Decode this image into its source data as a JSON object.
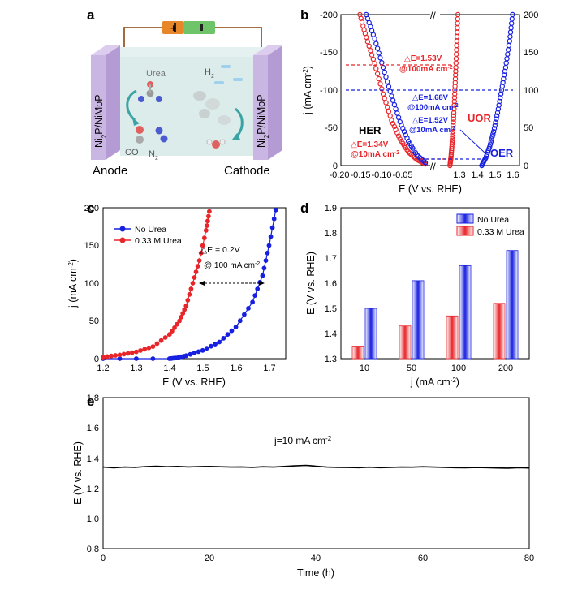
{
  "colors": {
    "red": "#e8262a",
    "blue": "#1720e0",
    "black": "#000000",
    "sketchcell": "#bcd8d8",
    "electrode": "#c9b6e3"
  },
  "panels": {
    "a": {
      "label": "a",
      "anode": "Anode",
      "cathode": "Cathode",
      "electrode": "Ni",
      "electrode_sub": "2",
      "electrode_rest": "P/NiMoP",
      "urea": "Urea",
      "co": "CO",
      "n2": "N",
      "n2_sub": "2",
      "h2": "H",
      "h2_sub": "2",
      "battery_plus": "+"
    },
    "b": {
      "label": "b",
      "xlabel": "E (V vs. RHE)",
      "ylabel": "j (mA cm",
      "ylabel_sup": "-2",
      "ylabel_end": ")",
      "her": "HER",
      "uor": "UOR",
      "oer": "OER",
      "ann": [
        "△E=1.53V",
        "@100mA cm",
        "△E=1.68V",
        "@100mA cm",
        "△E=1.52V",
        "@10mA cm",
        "△E=1.34V",
        "@10mA cm"
      ],
      "ann_sup": "-2",
      "xticks_left": [
        "-0.20",
        "-0.15",
        "-0.10",
        "-0.05"
      ],
      "xticks_right": [
        "1.3",
        "1.4",
        "1.5",
        "1.6"
      ],
      "yticks_left": [
        "-200",
        "-150",
        "-100",
        "-50",
        "0"
      ],
      "yticks_right": [
        "200",
        "150",
        "100",
        "50",
        "0"
      ]
    },
    "c": {
      "label": "c",
      "xlabel": "E (V vs. RHE)",
      "ylabel": "j (mA cm",
      "ylabel_sup": "-2",
      "ylabel_end": ")",
      "legend": [
        "No Urea",
        "0.33 M Urea"
      ],
      "ann1": "△E = 0.2V",
      "ann2": "@ 100 mA cm",
      "ann_sup": "-2",
      "xticks": [
        "1.2",
        "1.3",
        "1.4",
        "1.5",
        "1.6",
        "1.7"
      ],
      "yticks": [
        "0",
        "50",
        "100",
        "150",
        "200"
      ]
    },
    "d": {
      "label": "d",
      "xlabel": "j (mA cm",
      "xlabel_sup": "-2",
      "xlabel_end": ")",
      "ylabel": "E (V vs. RHE)",
      "legend": [
        "No Urea",
        "0.33 M Urea"
      ],
      "yticks": [
        "1.3",
        "1.4",
        "1.5",
        "1.6",
        "1.7",
        "1.8",
        "1.9"
      ]
    },
    "e": {
      "label": "e",
      "xlabel": "Time (h)",
      "ylabel": "E (V vs. RHE)",
      "ann": "j=10 mA cm",
      "ann_sup": "-2",
      "xticks": [
        "0",
        "20",
        "40",
        "60",
        "80"
      ],
      "yticks": [
        "0.8",
        "1.0",
        "1.2",
        "1.4",
        "1.6",
        "1.8"
      ]
    }
  },
  "chart_data": [
    {
      "panel": "b",
      "type": "scatter",
      "xlabel": "E (V vs. RHE)",
      "ylabel": "j (mA cm-2)",
      "axis_break": true,
      "xlim_left": [
        -0.2,
        0.0
      ],
      "xlim_right": [
        1.25,
        1.65
      ],
      "ylim": [
        -200,
        0
      ],
      "ylim_right": [
        200,
        0
      ],
      "series": [
        {
          "name": "HER",
          "color": "#e8262a",
          "x": [
            0.0,
            -0.02,
            -0.04,
            -0.06,
            -0.08,
            -0.1,
            -0.12,
            -0.14,
            -0.155
          ],
          "y": [
            -2,
            -8,
            -18,
            -35,
            -60,
            -95,
            -135,
            -170,
            -200
          ]
        },
        {
          "name": "HER",
          "color": "#1720e0",
          "x": [
            0.0,
            -0.02,
            -0.04,
            -0.06,
            -0.08,
            -0.1,
            -0.12,
            -0.14
          ],
          "y": [
            -4,
            -14,
            -32,
            -58,
            -92,
            -130,
            -168,
            -200
          ]
        },
        {
          "name": "UOR",
          "color": "#e8262a",
          "x": [
            1.3,
            1.305,
            1.31,
            1.315,
            1.32,
            1.325,
            1.33,
            1.335,
            1.34
          ],
          "y": [
            0,
            10,
            25,
            45,
            70,
            100,
            130,
            165,
            200
          ]
        },
        {
          "name": "OER",
          "color": "#1720e0",
          "x": [
            1.46,
            1.48,
            1.5,
            1.52,
            1.54,
            1.56,
            1.58,
            1.6,
            1.615
          ],
          "y": [
            0,
            10,
            25,
            45,
            70,
            100,
            130,
            165,
            200
          ]
        }
      ]
    },
    {
      "panel": "c",
      "type": "scatter",
      "xlabel": "E (V vs. RHE)",
      "ylabel": "j (mA cm-2)",
      "xlim": [
        1.2,
        1.75
      ],
      "ylim": [
        0,
        200
      ],
      "series": [
        {
          "name": "No Urea",
          "color": "#1720e0",
          "x": [
            1.2,
            1.4,
            1.42,
            1.45,
            1.5,
            1.55,
            1.6,
            1.65,
            1.68,
            1.7,
            1.72
          ],
          "y": [
            0,
            0,
            1,
            4,
            11,
            22,
            42,
            75,
            110,
            150,
            197
          ]
        },
        {
          "name": "0.33 M Urea",
          "color": "#e8262a",
          "x": [
            1.2,
            1.25,
            1.3,
            1.35,
            1.4,
            1.43,
            1.45,
            1.47,
            1.49,
            1.51,
            1.52
          ],
          "y": [
            2,
            5,
            9,
            16,
            32,
            50,
            70,
            100,
            130,
            170,
            195
          ]
        }
      ]
    },
    {
      "panel": "d",
      "type": "bar",
      "xlabel": "j (mA cm-2)",
      "ylabel": "E (V vs. RHE)",
      "categories": [
        "10",
        "50",
        "100",
        "200"
      ],
      "ylim": [
        1.3,
        1.9
      ],
      "series": [
        {
          "name": "No Urea",
          "color": "#1720e0",
          "values": [
            1.5,
            1.61,
            1.67,
            1.73
          ]
        },
        {
          "name": "0.33 M Urea",
          "color": "#e8262a",
          "values": [
            1.35,
            1.43,
            1.47,
            1.52
          ]
        }
      ]
    },
    {
      "panel": "e",
      "type": "line",
      "xlabel": "Time (h)",
      "ylabel": "E (V vs. RHE)",
      "xlim": [
        0,
        80
      ],
      "ylim": [
        0.8,
        1.8
      ],
      "series": [
        {
          "name": "",
          "color": "#000000",
          "x": [
            0,
            2,
            4,
            6,
            8,
            10,
            12,
            14,
            16,
            18,
            20,
            22,
            24,
            26,
            28,
            30,
            32,
            34,
            36,
            38,
            39,
            40,
            42,
            44,
            46,
            48,
            50,
            52,
            54,
            56,
            58,
            60,
            62,
            64,
            66,
            68,
            70,
            72,
            74,
            76,
            78,
            80
          ],
          "y": [
            1.34,
            1.335,
            1.34,
            1.338,
            1.343,
            1.345,
            1.342,
            1.344,
            1.341,
            1.343,
            1.344,
            1.342,
            1.34,
            1.341,
            1.338,
            1.342,
            1.34,
            1.344,
            1.348,
            1.351,
            1.349,
            1.345,
            1.34,
            1.338,
            1.337,
            1.336,
            1.339,
            1.336,
            1.338,
            1.34,
            1.339,
            1.342,
            1.34,
            1.338,
            1.336,
            1.335,
            1.337,
            1.336,
            1.334,
            1.333,
            1.336,
            1.334
          ]
        }
      ]
    }
  ]
}
